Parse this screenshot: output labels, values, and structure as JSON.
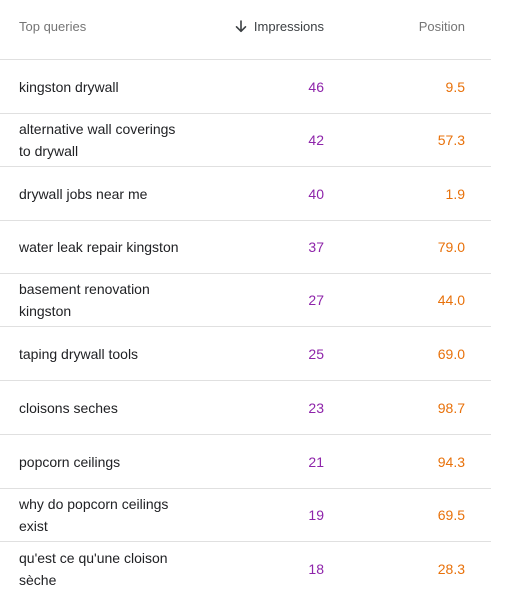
{
  "header": {
    "query_label": "Top queries",
    "impressions_label": "Impressions",
    "position_label": "Position",
    "sort_icon": "arrow-down-icon"
  },
  "colors": {
    "impressions": "#8e24aa",
    "position": "#e8710a"
  },
  "rows": [
    {
      "query": "kingston drywall",
      "impressions": "46",
      "position": "9.5"
    },
    {
      "query": "alternative wall coverings to drywall",
      "impressions": "42",
      "position": "57.3"
    },
    {
      "query": "drywall jobs near me",
      "impressions": "40",
      "position": "1.9"
    },
    {
      "query": "water leak repair kingston",
      "impressions": "37",
      "position": "79.0"
    },
    {
      "query": "basement renovation kingston",
      "impressions": "27",
      "position": "44.0"
    },
    {
      "query": "taping drywall tools",
      "impressions": "25",
      "position": "69.0"
    },
    {
      "query": "cloisons seches",
      "impressions": "23",
      "position": "98.7"
    },
    {
      "query": "popcorn ceilings",
      "impressions": "21",
      "position": "94.3"
    },
    {
      "query": "why do popcorn ceilings exist",
      "impressions": "19",
      "position": "69.5"
    },
    {
      "query": "qu'est ce qu'une cloison sèche",
      "impressions": "18",
      "position": "28.3"
    }
  ]
}
